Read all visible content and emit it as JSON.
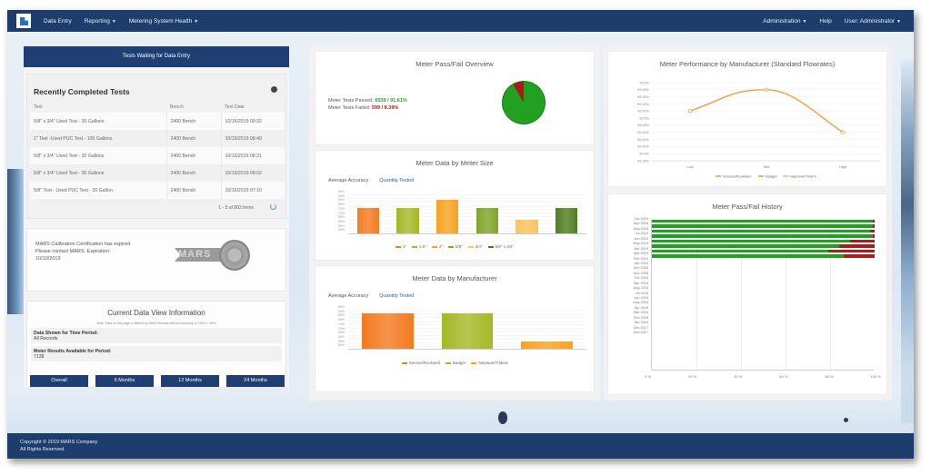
{
  "nav": {
    "logo": "mars-logo",
    "items": [
      {
        "label": "Data Entry",
        "dropdown": false
      },
      {
        "label": "Reporting",
        "dropdown": true
      },
      {
        "label": "Metering System Health",
        "dropdown": true
      }
    ],
    "right_items": [
      {
        "label": "Administration",
        "dropdown": true
      },
      {
        "label": "Help",
        "dropdown": false
      },
      {
        "label": "User: Administrator",
        "dropdown": true
      }
    ]
  },
  "left": {
    "tests_waiting_label": "Tests Waiting for Data Entry",
    "recent": {
      "title": "Recently Completed Tests",
      "columns": [
        "Test",
        "Bench",
        "Test Date"
      ],
      "rows": [
        [
          "5/8\" x 3/4\" Used Test - 30 Gallons",
          "2400 Bench",
          "10/15/2019 09:32"
        ],
        [
          "1\" Test -Used PUC Test - 100 Gallons",
          "2400 Bench",
          "10/15/2019 08:49"
        ],
        [
          "5/8\" x 3/4\" Used Test - 30 Gallons",
          "2400 Bench",
          "10/15/2019 08:21"
        ],
        [
          "5/8\" x 3/4\" Used Test - 30 Gallons",
          "2400 Bench",
          "10/15/2019 08:02"
        ],
        [
          "5/8\" Test - Used PUC Test - 30 Gallon",
          "2400 Bench",
          "10/15/2019 07:10"
        ]
      ],
      "pager": "1 - 5 of 803 items"
    },
    "calibration": {
      "text": "MARS Calibration Certification has expired. Please contact MARS. Expiration: 10/10/2019",
      "badge_text": "MARS"
    },
    "data_view": {
      "title": "Current Data View Information",
      "note": "Note: Data on this page is filtered by Meter Results with an Accuracy of 100% ± 50%",
      "time_period_label": "Data Shown for Time Period:",
      "time_period_value": "All Records",
      "results_label": "Meter Results Available for Period:",
      "results_value": "7138",
      "buttons": [
        "Overall",
        "6 Months",
        "12 Months",
        "24 Months"
      ]
    }
  },
  "passfail": {
    "title": "Meter Pass/Fail Overview",
    "passed_label": "Meter Tests Passed:",
    "passed_value": "6539 / 91.61%",
    "failed_label": "Meter Tests Failed:",
    "failed_value": "599 / 8.39%",
    "colors": {
      "pass": "#22a022",
      "fail": "#b01818"
    }
  },
  "size_chart": {
    "title": "Meter Data by Meter Size",
    "tabs": [
      "Average Accuracy",
      "Quantity Tested"
    ],
    "active_tab": 1
  },
  "mfr_chart": {
    "title": "Meter Data by Manufacturer",
    "tabs": [
      "Average Accuracy",
      "Quantity Tested"
    ],
    "active_tab": 1
  },
  "perf_chart": {
    "title": "Meter Performance by Manufacturer (Standard Flowrates)"
  },
  "history_chart": {
    "title": "Meter Pass/Fail History"
  },
  "chart_data": [
    {
      "type": "pie",
      "title": "Meter Pass/Fail Overview",
      "categories": [
        "Passed",
        "Failed"
      ],
      "values": [
        91.61,
        8.39
      ],
      "colors": [
        "#22a022",
        "#b01818"
      ]
    },
    {
      "type": "bar",
      "title": "Meter Data by Meter Size",
      "categories": [
        "1\"",
        "1.5\"",
        "2\"",
        "5/8\"",
        "3/4\"",
        "5/8\" x 3/4\""
      ],
      "values": [
        60,
        60,
        80,
        60,
        32,
        60
      ],
      "colors": [
        "#f47a1f",
        "#a4b825",
        "#f7a21e",
        "#7ea526",
        "#fbc25a",
        "#4f7d1e"
      ],
      "xlabel": "",
      "ylabel": "",
      "legend_position": "bottom"
    },
    {
      "type": "bar",
      "title": "Meter Data by Manufacturer",
      "categories": [
        "Sensus/Rockwell",
        "Badger",
        "Neptune/Trident"
      ],
      "values": [
        85,
        85,
        18
      ],
      "colors": [
        "#f47a1f",
        "#a4b825",
        "#f7a21e"
      ],
      "legend_position": "bottom"
    },
    {
      "type": "line",
      "title": "Meter Performance by Manufacturer (Standard Flowrates)",
      "categories": [
        "Low",
        "Mid",
        "High"
      ],
      "series": [
        {
          "name": "Sensus/Rockwell",
          "values": [
            99.52,
            99.58,
            99.46
          ],
          "color": "#f59a4a"
        },
        {
          "name": "Badger",
          "values": [],
          "color": "#a4b825"
        },
        {
          "name": "Neptune/Trident",
          "values": [],
          "color": "#f7b25a"
        }
      ],
      "yticks": [
        "99.6%",
        "99.58%",
        "99.56%",
        "99.54%",
        "99.52%",
        "99.5%",
        "99.48%",
        "99.46%",
        "99.44%",
        "99.42%",
        "99.4%",
        "99.38%"
      ],
      "ylim": [
        99.38,
        99.6
      ],
      "legend_position": "bottom"
    },
    {
      "type": "bar",
      "orientation": "horizontal-stacked",
      "title": "Meter Pass/Fail History",
      "categories": [
        "Oct 2019",
        "Sep 2019",
        "Aug 2019",
        "Jul 2019",
        "Jun 2019",
        "May 2019",
        "Apr 2019",
        "Mar 2019",
        "Feb 2019",
        "Jan 2019",
        "Dec 2018",
        "Nov 2018",
        "Oct 2018",
        "Sep 2018",
        "Aug 2018",
        "Jul 2018",
        "Jun 2018",
        "May 2018",
        "Apr 2018",
        "Mar 2018",
        "Feb 2018",
        "Jan 2018",
        "Dec 2017",
        "Nov 2017"
      ],
      "series": [
        {
          "name": "Pass",
          "values": [
            99,
            99,
            98,
            99,
            89,
            84,
            79,
            86,
            0,
            0,
            0,
            0,
            0,
            0,
            0,
            0,
            0,
            0,
            0,
            0,
            0,
            0,
            0,
            0
          ],
          "color": "#22a022"
        },
        {
          "name": "Fail",
          "values": [
            1,
            1,
            2,
            1,
            11,
            16,
            21,
            14,
            0,
            0,
            0,
            0,
            0,
            0,
            0,
            0,
            0,
            0,
            0,
            0,
            0,
            0,
            0,
            0
          ],
          "color": "#a81d1d"
        }
      ],
      "xticks": [
        "0 %",
        "20 %",
        "40 %",
        "60 %",
        "80 %",
        "100 %"
      ],
      "xlim": [
        0,
        100
      ]
    }
  ],
  "footer": {
    "line1": "Copyright © 2019 MARS Company",
    "line2": "All Rights Reserved."
  }
}
